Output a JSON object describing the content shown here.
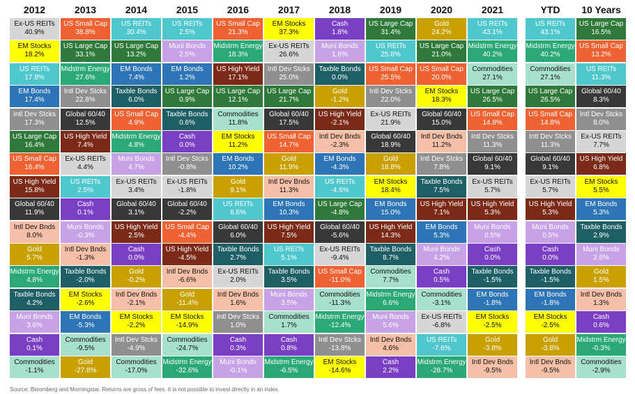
{
  "chart_data": {
    "type": "table",
    "asset_styles": {
      "Ex-US REITs": {
        "bg": "#d6d6d6",
        "fg": "#111111"
      },
      "EM Stocks": {
        "bg": "#ffff00",
        "fg": "#111111"
      },
      "US REITs": {
        "bg": "#4fc7cc",
        "fg": "#ffffff"
      },
      "EM Bonds": {
        "bg": "#2d75b6",
        "fg": "#ffffff"
      },
      "Intl Dev Stcks": {
        "bg": "#8f8f8f",
        "fg": "#ffffff"
      },
      "US Large Cap": {
        "bg": "#2f7a3a",
        "fg": "#ffffff"
      },
      "US Small Cap": {
        "bg": "#f06232",
        "fg": "#ffffff"
      },
      "US High Yield": {
        "bg": "#7b2a18",
        "fg": "#ffffff"
      },
      "Global 60/40": {
        "bg": "#383838",
        "fg": "#ffffff"
      },
      "Intl Dev Bnds": {
        "bg": "#f6c0a8",
        "fg": "#111111"
      },
      "Gold": {
        "bg": "#c8a100",
        "fg": "#ffffff"
      },
      "Midstrm Energy": {
        "bg": "#2aa876",
        "fg": "#ffffff"
      },
      "Taxble Bonds": {
        "bg": "#1e5f66",
        "fg": "#ffffff"
      },
      "Muni Bonds": {
        "bg": "#c8a2e6",
        "fg": "#ffffff"
      },
      "Cash": {
        "bg": "#7a3fc4",
        "fg": "#ffffff"
      },
      "Commodities": {
        "bg": "#a7e0cc",
        "fg": "#111111"
      }
    },
    "columns": [
      {
        "label": "2012",
        "cells": [
          {
            "name": "Ex-US REITs",
            "value": "40.9%"
          },
          {
            "name": "EM Stocks",
            "value": "18.2%"
          },
          {
            "name": "US REITs",
            "value": "17.8%"
          },
          {
            "name": "EM Bonds",
            "value": "17.4%"
          },
          {
            "name": "Intl Dev Stcks",
            "value": "17.3%"
          },
          {
            "name": "US Large Cap",
            "value": "16.4%"
          },
          {
            "name": "US Small Cap",
            "value": "16.4%"
          },
          {
            "name": "US High Yield",
            "value": "15.8%"
          },
          {
            "name": "Global 60/40",
            "value": "11.9%"
          },
          {
            "name": "Intl Dev Bnds",
            "value": "8.0%"
          },
          {
            "name": "Gold",
            "value": "5.7%"
          },
          {
            "name": "Midstrm Energy",
            "value": "4.8%"
          },
          {
            "name": "Taxble Bonds",
            "value": "4.2%"
          },
          {
            "name": "Muni Bonds",
            "value": "3.6%"
          },
          {
            "name": "Cash",
            "value": "0.1%"
          },
          {
            "name": "Commodities",
            "value": "-1.1%"
          }
        ]
      },
      {
        "label": "2013",
        "cells": [
          {
            "name": "US Small Cap",
            "value": "38.8%"
          },
          {
            "name": "US Large Cap",
            "value": "33.1%"
          },
          {
            "name": "Midstrm Energy",
            "value": "27.6%"
          },
          {
            "name": "Intl Dev Stcks",
            "value": "22.8%"
          },
          {
            "name": "Global 60/40",
            "value": "12.5%"
          },
          {
            "name": "US High Yield",
            "value": "7.4%"
          },
          {
            "name": "Ex-US REITs",
            "value": "4.4%"
          },
          {
            "name": "US REITs",
            "value": "2.5%"
          },
          {
            "name": "Cash",
            "value": "0.1%"
          },
          {
            "name": "Muni Bonds",
            "value": "-0.3%"
          },
          {
            "name": "Intl Dev Bnds",
            "value": "-1.3%"
          },
          {
            "name": "Taxble Bonds",
            "value": "-2.0%"
          },
          {
            "name": "EM Stocks",
            "value": "-2.6%"
          },
          {
            "name": "EM Bonds",
            "value": "-5.3%"
          },
          {
            "name": "Commodities",
            "value": "-9.5%"
          },
          {
            "name": "Gold",
            "value": "-27.8%"
          }
        ]
      },
      {
        "label": "2014",
        "cells": [
          {
            "name": "US REITs",
            "value": "30.4%"
          },
          {
            "name": "US Large Cap",
            "value": "13.2%"
          },
          {
            "name": "EM Bonds",
            "value": "7.4%"
          },
          {
            "name": "Taxble Bonds",
            "value": "6.0%"
          },
          {
            "name": "US Small Cap",
            "value": "4.9%"
          },
          {
            "name": "Midstrm Energy",
            "value": "4.8%"
          },
          {
            "name": "Muni Bonds",
            "value": "4.7%"
          },
          {
            "name": "Ex-US REITs",
            "value": "3.4%"
          },
          {
            "name": "Global 60/40",
            "value": "3.1%"
          },
          {
            "name": "US High Yield",
            "value": "2.5%"
          },
          {
            "name": "Cash",
            "value": "0.0%"
          },
          {
            "name": "Gold",
            "value": "-0.2%"
          },
          {
            "name": "Intl Dev Bnds",
            "value": "-2.1%"
          },
          {
            "name": "EM Stocks",
            "value": "-2.2%"
          },
          {
            "name": "Intl Dev Stcks",
            "value": "-4.9%"
          },
          {
            "name": "Commodities",
            "value": "-17.0%"
          }
        ]
      },
      {
        "label": "2015",
        "cells": [
          {
            "name": "US REITs",
            "value": "2.5%"
          },
          {
            "name": "Muni Bonds",
            "value": "2.5%"
          },
          {
            "name": "EM Bonds",
            "value": "1.2%"
          },
          {
            "name": "US Large Cap",
            "value": "0.9%"
          },
          {
            "name": "Taxble Bonds",
            "value": "0.6%"
          },
          {
            "name": "Cash",
            "value": "0.0%"
          },
          {
            "name": "Intl Dev Stcks",
            "value": "-0.8%"
          },
          {
            "name": "Ex-US REITs",
            "value": "-1.8%"
          },
          {
            "name": "Global 60/40",
            "value": "-2.2%"
          },
          {
            "name": "US Small Cap",
            "value": "-4.4%"
          },
          {
            "name": "US High Yield",
            "value": "-4.5%"
          },
          {
            "name": "Intl Dev Bnds",
            "value": "-6.6%"
          },
          {
            "name": "Gold",
            "value": "-11.4%"
          },
          {
            "name": "EM Stocks",
            "value": "-14.9%"
          },
          {
            "name": "Commodities",
            "value": "-24.7%"
          },
          {
            "name": "Midstrm Energy",
            "value": "-32.6%"
          }
        ]
      },
      {
        "label": "2016",
        "cells": [
          {
            "name": "US Small Cap",
            "value": "21.3%"
          },
          {
            "name": "Midstrm Energy",
            "value": "18.3%"
          },
          {
            "name": "US High Yield",
            "value": "17.1%"
          },
          {
            "name": "US Large Cap",
            "value": "12.1%"
          },
          {
            "name": "Commodities",
            "value": "11.8%"
          },
          {
            "name": "EM Stocks",
            "value": "11.2%"
          },
          {
            "name": "EM Bonds",
            "value": "10.2%"
          },
          {
            "name": "Gold",
            "value": "9.1%"
          },
          {
            "name": "US REITs",
            "value": "8.6%"
          },
          {
            "name": "Global 60/40",
            "value": "6.0%"
          },
          {
            "name": "Taxble Bonds",
            "value": "2.7%"
          },
          {
            "name": "Ex-US REITs",
            "value": "2.0%"
          },
          {
            "name": "Intl Dev Bnds",
            "value": "1.6%"
          },
          {
            "name": "Intl Dev Stcks",
            "value": "1.0%"
          },
          {
            "name": "Cash",
            "value": "0.3%"
          },
          {
            "name": "Muni Bonds",
            "value": "-0.1%"
          }
        ]
      },
      {
        "label": "2017",
        "cells": [
          {
            "name": "EM Stocks",
            "value": "37.3%"
          },
          {
            "name": "Ex-US REITs",
            "value": "26.6%"
          },
          {
            "name": "Intl Dev Stcks",
            "value": "25.0%"
          },
          {
            "name": "US Large Cap",
            "value": "21.7%"
          },
          {
            "name": "Global 60/40",
            "value": "17.5%"
          },
          {
            "name": "US Small Cap",
            "value": "14.7%"
          },
          {
            "name": "Gold",
            "value": "11.9%"
          },
          {
            "name": "Intl Dev Bnds",
            "value": "11.3%"
          },
          {
            "name": "EM Bonds",
            "value": "10.3%"
          },
          {
            "name": "US High Yield",
            "value": "7.5%"
          },
          {
            "name": "US REITs",
            "value": "5.1%"
          },
          {
            "name": "Taxble Bonds",
            "value": "3.5%"
          },
          {
            "name": "Muni Bonds",
            "value": "3.5%"
          },
          {
            "name": "Commodities",
            "value": "1.7%"
          },
          {
            "name": "Cash",
            "value": "0.8%"
          },
          {
            "name": "Midstrm Energy",
            "value": "-6.5%"
          }
        ]
      },
      {
        "label": "2018",
        "cells": [
          {
            "name": "Cash",
            "value": "1.8%"
          },
          {
            "name": "Muni Bonds",
            "value": "1.6%"
          },
          {
            "name": "Taxble Bonds",
            "value": "0.0%"
          },
          {
            "name": "Gold",
            "value": "-1.2%"
          },
          {
            "name": "US High Yield",
            "value": "-2.1%"
          },
          {
            "name": "Intl Dev Bnds",
            "value": "-2.3%"
          },
          {
            "name": "EM Bonds",
            "value": "-4.3%"
          },
          {
            "name": "US REITs",
            "value": "-4.6%"
          },
          {
            "name": "US Large Cap",
            "value": "-4.8%"
          },
          {
            "name": "Global 60/40",
            "value": "-5.6%"
          },
          {
            "name": "Ex-US REITs",
            "value": "-9.4%"
          },
          {
            "name": "US Small Cap",
            "value": "-11.0%"
          },
          {
            "name": "Commodities",
            "value": "-11.3%"
          },
          {
            "name": "Midstrm Energy",
            "value": "-12.4%"
          },
          {
            "name": "Intl Dev Stcks",
            "value": "-13.8%"
          },
          {
            "name": "EM Stocks",
            "value": "-14.6%"
          }
        ]
      },
      {
        "label": "2019",
        "cells": [
          {
            "name": "US Large Cap",
            "value": "31.4%"
          },
          {
            "name": "US REITs",
            "value": "25.8%"
          },
          {
            "name": "US Small Cap",
            "value": "25.5%"
          },
          {
            "name": "Intl Dev Stcks",
            "value": "22.0%"
          },
          {
            "name": "Ex-US REITs",
            "value": "21.9%"
          },
          {
            "name": "Global 60/40",
            "value": "18.9%"
          },
          {
            "name": "Gold",
            "value": "18.8%"
          },
          {
            "name": "EM Stocks",
            "value": "18.4%"
          },
          {
            "name": "EM Bonds",
            "value": "15.0%"
          },
          {
            "name": "US High Yield",
            "value": "14.3%"
          },
          {
            "name": "Taxble Bonds",
            "value": "8.7%"
          },
          {
            "name": "Commodities",
            "value": "7.7%"
          },
          {
            "name": "Midstrm Energy",
            "value": "6.6%"
          },
          {
            "name": "Muni Bonds",
            "value": "5.6%"
          },
          {
            "name": "Intl Dev Bnds",
            "value": "4.6%"
          },
          {
            "name": "Cash",
            "value": "2.2%"
          }
        ]
      },
      {
        "label": "2020",
        "cells": [
          {
            "name": "Gold",
            "value": "24.2%"
          },
          {
            "name": "US Large Cap",
            "value": "21.0%"
          },
          {
            "name": "US Small Cap",
            "value": "20.0%"
          },
          {
            "name": "EM Stocks",
            "value": "18.3%"
          },
          {
            "name": "Global 60/40",
            "value": "15.0%"
          },
          {
            "name": "Intl Dev Bnds",
            "value": "11.2%"
          },
          {
            "name": "Intl Dev Stcks",
            "value": "7.8%"
          },
          {
            "name": "Taxble Bonds",
            "value": "7.5%"
          },
          {
            "name": "US High Yield",
            "value": "7.1%"
          },
          {
            "name": "EM Bonds",
            "value": "5.3%"
          },
          {
            "name": "Muni Bonds",
            "value": "4.2%"
          },
          {
            "name": "Cash",
            "value": "0.5%"
          },
          {
            "name": "Commodities",
            "value": "-3.1%"
          },
          {
            "name": "Ex-US REITs",
            "value": "-6.8%"
          },
          {
            "name": "US REITs",
            "value": "-7.6%"
          },
          {
            "name": "Midstrm Energy",
            "value": "-28.7%"
          }
        ]
      },
      {
        "label": "2021",
        "cells": [
          {
            "name": "US REITs",
            "value": "43.1%"
          },
          {
            "name": "Midstrm Energy",
            "value": "40.2%"
          },
          {
            "name": "Commodities",
            "value": "27.1%"
          },
          {
            "name": "US Large Cap",
            "value": "26.5%"
          },
          {
            "name": "US Small Cap",
            "value": "14.8%"
          },
          {
            "name": "Intl Dev Stcks",
            "value": "11.3%"
          },
          {
            "name": "Global 60/40",
            "value": "9.1%"
          },
          {
            "name": "Ex-US REITs",
            "value": "5.7%"
          },
          {
            "name": "US High Yield",
            "value": "5.3%"
          },
          {
            "name": "Muni Bonds",
            "value": "0.5%"
          },
          {
            "name": "Cash",
            "value": "0.0%"
          },
          {
            "name": "Taxble Bonds",
            "value": "-1.5%"
          },
          {
            "name": "EM Bonds",
            "value": "-1.8%"
          },
          {
            "name": "EM Stocks",
            "value": "-2.5%"
          },
          {
            "name": "Gold",
            "value": "-3.8%"
          },
          {
            "name": "Intl Dev Bnds",
            "value": "-9.5%"
          }
        ]
      },
      {
        "label": "YTD",
        "cells": [
          {
            "name": "US REITs",
            "value": "43.1%"
          },
          {
            "name": "Midstrm Energy",
            "value": "40.2%"
          },
          {
            "name": "Commodities",
            "value": "27.1%"
          },
          {
            "name": "US Large Cap",
            "value": "26.5%"
          },
          {
            "name": "US Small Cap",
            "value": "14.8%"
          },
          {
            "name": "Intl Dev Stcks",
            "value": "11.3%"
          },
          {
            "name": "Global 60/40",
            "value": "9.1%"
          },
          {
            "name": "Ex-US REITs",
            "value": "5.7%"
          },
          {
            "name": "US High Yield",
            "value": "5.3%"
          },
          {
            "name": "Muni Bonds",
            "value": "0.5%"
          },
          {
            "name": "Cash",
            "value": "0.0%"
          },
          {
            "name": "Taxble Bonds",
            "value": "-1.5%"
          },
          {
            "name": "EM Bonds",
            "value": "-1.8%"
          },
          {
            "name": "EM Stocks",
            "value": "-2.5%"
          },
          {
            "name": "Gold",
            "value": "-3.8%"
          },
          {
            "name": "Intl Dev Bnds",
            "value": "-9.5%"
          }
        ]
      },
      {
        "label": "10 Years",
        "cells": [
          {
            "name": "US Large Cap",
            "value": "16.5%"
          },
          {
            "name": "US Small Cap",
            "value": "13.2%"
          },
          {
            "name": "US REITs",
            "value": "11.3%"
          },
          {
            "name": "Global 60/40",
            "value": "8.3%"
          },
          {
            "name": "Intl Dev Stcks",
            "value": "8.0%"
          },
          {
            "name": "Ex-US REITs",
            "value": "7.7%"
          },
          {
            "name": "US High Yield",
            "value": "6.8%"
          },
          {
            "name": "EM Stocks",
            "value": "5.5%"
          },
          {
            "name": "EM Bonds",
            "value": "5.3%"
          },
          {
            "name": "Taxble Bonds",
            "value": "2.9%"
          },
          {
            "name": "Muni Bonds",
            "value": "2.6%"
          },
          {
            "name": "Gold",
            "value": "1.5%"
          },
          {
            "name": "Intl Dev Bnds",
            "value": "1.3%"
          },
          {
            "name": "Cash",
            "value": "0.6%"
          },
          {
            "name": "Midstrm Energy",
            "value": "-0.3%"
          },
          {
            "name": "Commodities",
            "value": "-2.9%"
          }
        ]
      }
    ]
  },
  "footer": {
    "source": "Source: Bloomberg and Morningstar. Returns are gross of fees. It is not possible to invest directly in an index."
  }
}
